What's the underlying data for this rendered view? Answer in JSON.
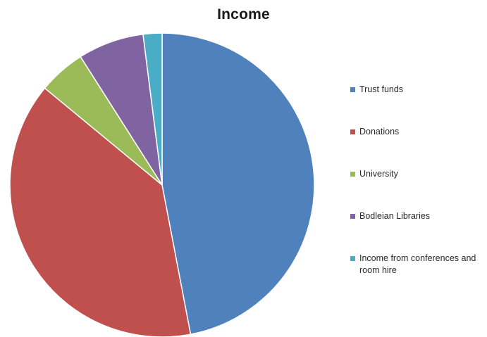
{
  "chart_data": {
    "type": "pie",
    "title": "Income",
    "legend_position": "right",
    "slices": [
      {
        "label": "Trust funds",
        "value": 47,
        "color": "#4F81BD"
      },
      {
        "label": "Donations",
        "value": 39,
        "color": "#C0504D"
      },
      {
        "label": "University",
        "value": 5,
        "color": "#9BBB59"
      },
      {
        "label": "Bodleian Libraries",
        "value": 7,
        "color": "#8064A2"
      },
      {
        "label": "Income from conferences and room hire",
        "value": 2,
        "color": "#4BACC6"
      }
    ]
  }
}
